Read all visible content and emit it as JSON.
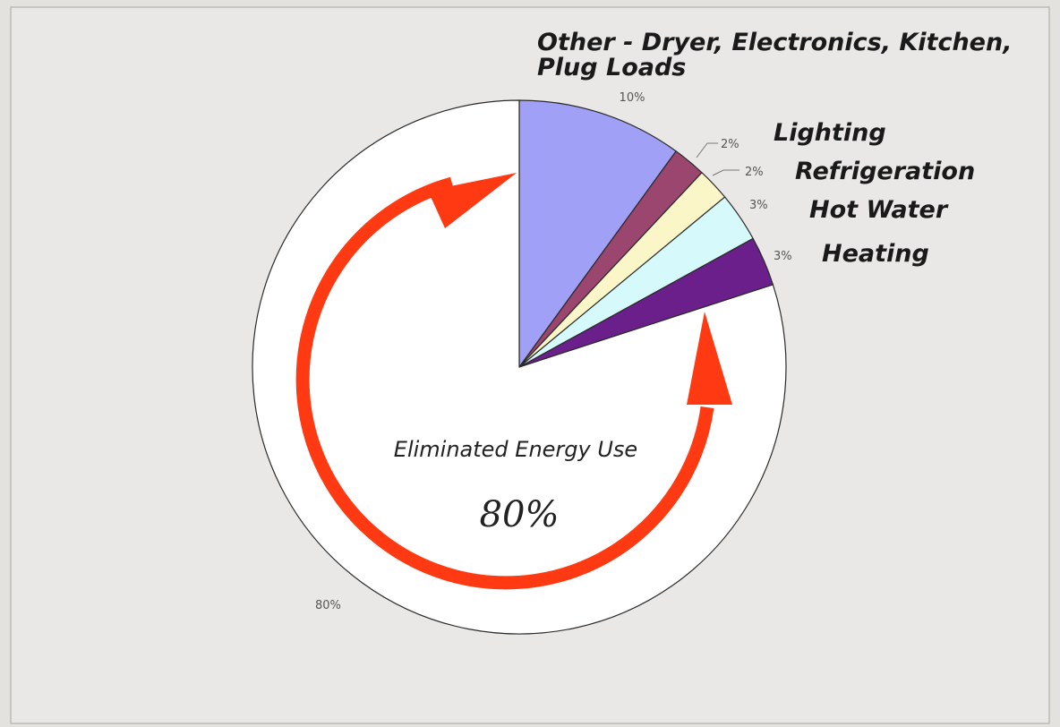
{
  "colors": {
    "background": "#e4e2df",
    "plot_area": "#eae8e6",
    "arrow": "#ff3a12",
    "outline": "#2a2a2a"
  },
  "chart_data": {
    "type": "pie",
    "start_angle_deg": 0,
    "direction": "clockwise",
    "slices": [
      {
        "name": "Other - Dryer, Electronics, Kitchen, Plug Loads",
        "label_lines": [
          "Other - Dryer, Electronics, Kitchen,",
          "Plug Loads"
        ],
        "value": 10,
        "value_label": "10%",
        "color": "#a0a0f6"
      },
      {
        "name": "Lighting",
        "label_lines": [
          "Lighting"
        ],
        "value": 2,
        "value_label": "2%",
        "color": "#9a466e"
      },
      {
        "name": "Refrigeration",
        "label_lines": [
          "Refrigeration"
        ],
        "value": 2,
        "value_label": "2%",
        "color": "#fbf6c8"
      },
      {
        "name": "Hot Water",
        "label_lines": [
          "Hot Water"
        ],
        "value": 3,
        "value_label": "3%",
        "color": "#d6fafb"
      },
      {
        "name": "Heating",
        "label_lines": [
          "Heating"
        ],
        "value": 3,
        "value_label": "3%",
        "color": "#6a1f8a"
      },
      {
        "name": "Eliminated Energy Use",
        "label_lines": [],
        "value": 80,
        "value_label": "80%",
        "color": "#ffffff"
      }
    ],
    "annotation": {
      "caption": "Eliminated Energy Use",
      "value": "80%"
    }
  }
}
